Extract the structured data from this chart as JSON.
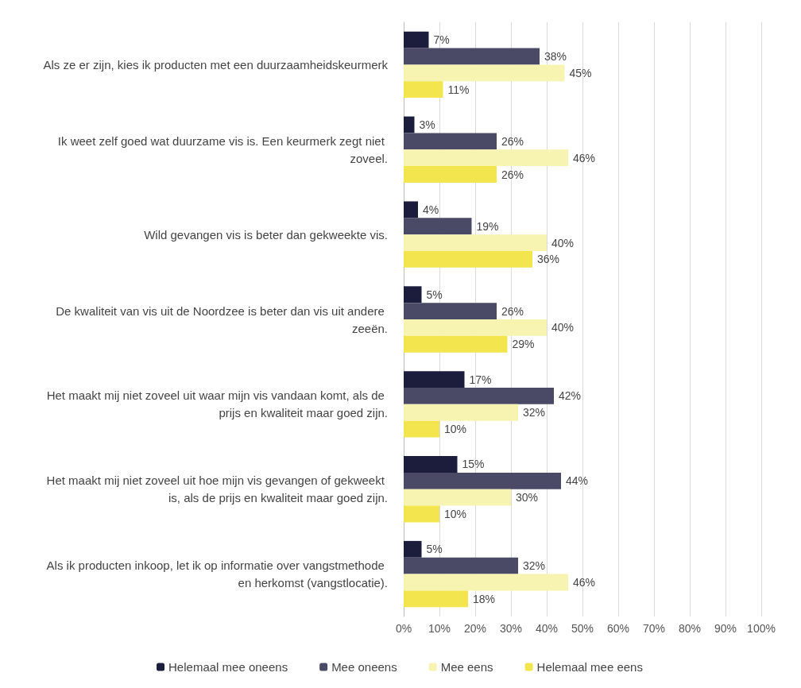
{
  "chart_data": {
    "type": "bar",
    "orientation": "horizontal",
    "categories": [
      "Als ze er zijn, kies ik producten met een duurzaamheidskeurmerk",
      "Ik weet zelf goed wat duurzame vis is. Een keurmerk zegt niet zoveel.",
      "Wild gevangen vis is beter dan gekweekte vis.",
      "De kwaliteit van vis uit de Noordzee is beter dan vis uit andere zeeën.",
      "Het maakt mij niet zoveel uit waar mijn vis vandaan komt, als de prijs en kwaliteit maar goed zijn.",
      "Het maakt mij niet zoveel uit hoe mijn vis gevangen of gekweekt is, als de prijs en kwaliteit maar goed zijn.",
      "Als ik producten inkoop, let ik op informatie over vangstmethode en herkomst (vangstlocatie)."
    ],
    "series": [
      {
        "name": "Helemaal mee oneens",
        "color": "#1c1c3c",
        "values": [
          7,
          3,
          4,
          5,
          17,
          15,
          5
        ],
        "value_labels": [
          "7%",
          "3%",
          "4%",
          "5%",
          "17%",
          "15%",
          "5%"
        ]
      },
      {
        "name": "Mee oneens",
        "color": "#4a4a66",
        "values": [
          38,
          26,
          19,
          26,
          42,
          44,
          32
        ],
        "value_labels": [
          "38%",
          "26%",
          "19%",
          "26%",
          "42%",
          "44%",
          "32%"
        ]
      },
      {
        "name": "Mee eens",
        "color": "#f7f3b0",
        "values": [
          45,
          46,
          40,
          40,
          32,
          30,
          46
        ],
        "value_labels": [
          "45%",
          "46%",
          "40%",
          "40%",
          "32%",
          "30%",
          "46%"
        ]
      },
      {
        "name": "Helemaal mee eens",
        "color": "#f2e54e",
        "values": [
          11,
          26,
          36,
          29,
          10,
          10,
          18
        ],
        "value_labels": [
          "11%",
          "26%",
          "36%",
          "29%",
          "10%",
          "10%",
          "18%"
        ]
      }
    ],
    "xlim": [
      0,
      100
    ],
    "xticks": [
      {
        "value": 0,
        "label": "0%"
      },
      {
        "value": 10,
        "label": "10%"
      },
      {
        "value": 20,
        "label": "20%"
      },
      {
        "value": 30,
        "label": "30%"
      },
      {
        "value": 40,
        "label": "40%"
      },
      {
        "value": 50,
        "label": "50%"
      },
      {
        "value": 60,
        "label": "60%"
      },
      {
        "value": 70,
        "label": "70%"
      },
      {
        "value": 80,
        "label": "80%"
      },
      {
        "value": 90,
        "label": "90%"
      },
      {
        "value": 100,
        "label": "100%"
      }
    ],
    "grid": "x",
    "legend": "bottom"
  }
}
